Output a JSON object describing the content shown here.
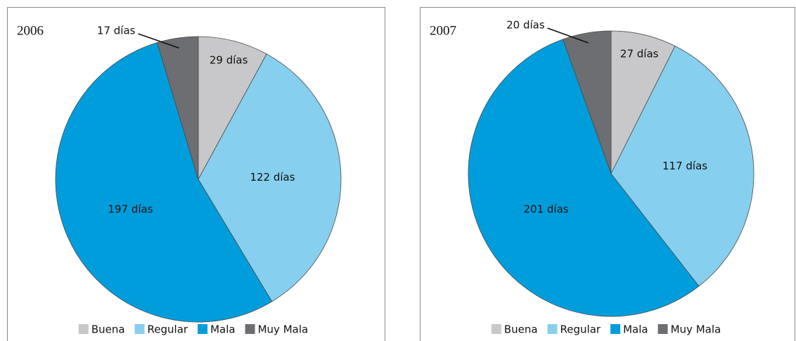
{
  "chart_data": [
    {
      "type": "pie",
      "title": "2006",
      "categories": [
        "Buena",
        "Regular",
        "Mala",
        "Muy Mala"
      ],
      "values": [
        29,
        122,
        197,
        17
      ],
      "value_labels": [
        "29 días",
        "122 días",
        "197 días",
        "17 días"
      ],
      "colors": [
        "#c8c8ca",
        "#87cfef",
        "#009ddc",
        "#6d6e71"
      ],
      "legend": "bottom"
    },
    {
      "type": "pie",
      "title": "2007",
      "categories": [
        "Buena",
        "Regular",
        "Mala",
        "Muy Mala"
      ],
      "values": [
        27,
        117,
        201,
        20
      ],
      "value_labels": [
        "27 días",
        "117 días",
        "201 días",
        "20 días"
      ],
      "colors": [
        "#c8c8ca",
        "#87cfef",
        "#009ddc",
        "#6d6e71"
      ],
      "legend": "bottom"
    }
  ]
}
